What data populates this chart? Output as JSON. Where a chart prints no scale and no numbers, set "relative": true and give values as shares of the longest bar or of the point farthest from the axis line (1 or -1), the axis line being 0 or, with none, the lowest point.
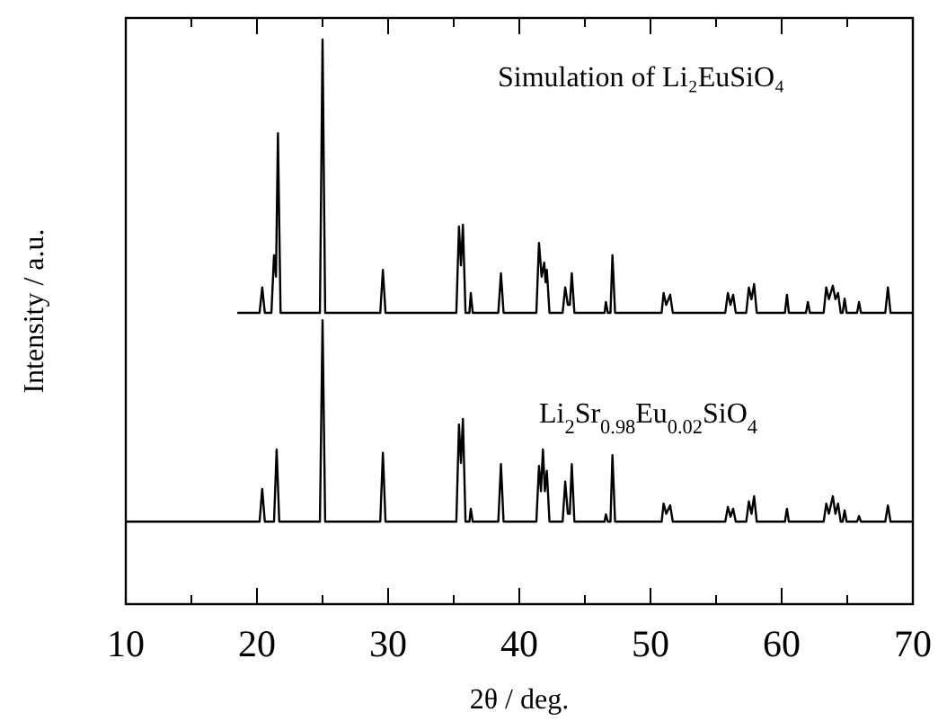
{
  "chart_data": {
    "type": "line",
    "relative": true,
    "xlabel": "2θ / deg.",
    "ylabel": "Intensity / a.u.",
    "xlim": [
      10,
      70
    ],
    "xticks": [
      10,
      {
        "value": 15,
        "label": null
      },
      20,
      {
        "value": 25,
        "label": null
      },
      30,
      {
        "value": 35,
        "label": null
      },
      40,
      {
        "value": 45,
        "label": null
      },
      50,
      {
        "value": 55,
        "label": null
      },
      60,
      {
        "value": 65,
        "label": null
      },
      70
    ],
    "grid": false,
    "series": [
      {
        "name": "Li$_{2}$Sr$_{0.98}$Eu$_{0.02}$SiO$_{4}$",
        "color": "#000000",
        "x": [
          10,
          20.2,
          20.4,
          20.6,
          21.3,
          21.5,
          21.7,
          24.8,
          25.0,
          25.2,
          29.4,
          29.6,
          29.8,
          35.2,
          35.4,
          35.55,
          35.7,
          35.9,
          36.2,
          36.3,
          36.45,
          38.4,
          38.6,
          38.8,
          41.3,
          41.5,
          41.65,
          41.8,
          41.95,
          42.1,
          42.3,
          43.3,
          43.5,
          43.7,
          43.85,
          44.0,
          44.2,
          46.5,
          46.6,
          46.75,
          46.95,
          47.1,
          47.3,
          50.85,
          51.0,
          51.2,
          51.5,
          51.7,
          55.7,
          55.9,
          56.1,
          56.3,
          56.5,
          57.3,
          57.5,
          57.7,
          57.9,
          58.1,
          60.25,
          60.4,
          60.55,
          63.2,
          63.4,
          63.6,
          63.9,
          64.1,
          64.3,
          64.5,
          64.65,
          64.8,
          64.95,
          65.75,
          65.9,
          66.05,
          67.9,
          68.1,
          68.3,
          70
        ],
        "values": [
          0.146,
          0.146,
          0.204,
          0.146,
          0.146,
          0.274,
          0.146,
          0.146,
          0.503,
          0.146,
          0.146,
          0.268,
          0.146,
          0.146,
          0.318,
          0.25,
          0.328,
          0.146,
          0.146,
          0.169,
          0.146,
          0.146,
          0.248,
          0.146,
          0.146,
          0.245,
          0.2,
          0.274,
          0.2,
          0.236,
          0.146,
          0.146,
          0.217,
          0.16,
          0.16,
          0.248,
          0.146,
          0.146,
          0.159,
          0.146,
          0.146,
          0.264,
          0.146,
          0.146,
          0.178,
          0.16,
          0.175,
          0.146,
          0.146,
          0.172,
          0.155,
          0.169,
          0.146,
          0.146,
          0.182,
          0.16,
          0.191,
          0.146,
          0.146,
          0.169,
          0.146,
          0.146,
          0.178,
          0.16,
          0.191,
          0.16,
          0.178,
          0.146,
          0.146,
          0.166,
          0.146,
          0.146,
          0.156,
          0.146,
          0.146,
          0.175,
          0.146,
          0.146
        ]
      },
      {
        "name": "Simulation of Li₂EuSiO₄",
        "color": "#000000",
        "x": [
          18.5,
          20.2,
          20.4,
          20.6,
          21.1,
          21.3,
          21.45,
          21.6,
          21.8,
          24.8,
          25.0,
          25.2,
          29.4,
          29.6,
          29.8,
          35.2,
          35.4,
          35.55,
          35.7,
          35.9,
          36.2,
          36.3,
          36.45,
          38.4,
          38.6,
          38.8,
          41.3,
          41.5,
          41.7,
          41.9,
          42.0,
          42.1,
          42.3,
          43.3,
          43.5,
          43.7,
          43.85,
          44.0,
          44.2,
          46.5,
          46.6,
          46.75,
          46.95,
          47.1,
          47.3,
          50.85,
          51.0,
          51.2,
          51.5,
          51.7,
          55.7,
          55.9,
          56.1,
          56.3,
          56.5,
          57.3,
          57.5,
          57.7,
          57.9,
          58.1,
          60.25,
          60.4,
          60.55,
          61.85,
          62.0,
          62.15,
          63.2,
          63.4,
          63.6,
          63.9,
          64.1,
          64.3,
          64.5,
          64.65,
          64.8,
          64.95,
          65.75,
          65.9,
          66.05,
          67.9,
          68.1,
          68.3,
          70
        ],
        "values": [
          0.516,
          0.516,
          0.561,
          0.516,
          0.516,
          0.618,
          0.58,
          0.834,
          0.516,
          0.516,
          1.0,
          0.516,
          0.516,
          0.592,
          0.516,
          0.516,
          0.669,
          0.6,
          0.672,
          0.516,
          0.516,
          0.551,
          0.516,
          0.516,
          0.586,
          0.516,
          0.516,
          0.64,
          0.58,
          0.605,
          0.57,
          0.592,
          0.516,
          0.516,
          0.561,
          0.53,
          0.53,
          0.586,
          0.516,
          0.516,
          0.535,
          0.516,
          0.516,
          0.618,
          0.516,
          0.516,
          0.551,
          0.53,
          0.548,
          0.516,
          0.516,
          0.551,
          0.53,
          0.548,
          0.516,
          0.516,
          0.561,
          0.54,
          0.567,
          0.516,
          0.516,
          0.548,
          0.516,
          0.516,
          0.535,
          0.516,
          0.516,
          0.561,
          0.54,
          0.564,
          0.54,
          0.551,
          0.516,
          0.516,
          0.541,
          0.516,
          0.516,
          0.535,
          0.516,
          0.516,
          0.561,
          0.516,
          0.516
        ]
      }
    ]
  }
}
